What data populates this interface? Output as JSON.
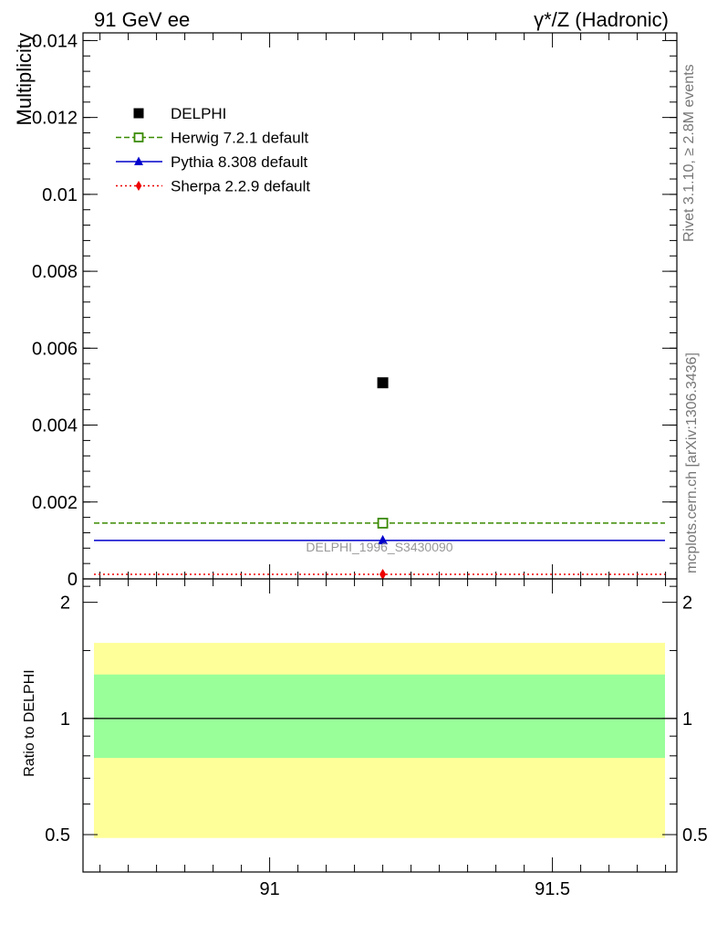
{
  "header": {
    "left": "91 GeV ee",
    "right": "γ*/Z (Hadronic)"
  },
  "side_text": {
    "top": "Rivet 3.1.10, ≥ 2.8M events",
    "bottom": "mcplots.cern.ch [arXiv:1306.3436]"
  },
  "watermark": "DELPHI_1996_S3430090",
  "chart_data": [
    {
      "type": "scatter",
      "ylabel": "Multiplicity",
      "xlim": [
        90.67,
        91.72
      ],
      "ylim": [
        0,
        0.0142
      ],
      "yticks": [
        0,
        0.002,
        0.004,
        0.006,
        0.008,
        0.01,
        0.012,
        0.014
      ],
      "ytick_labels": [
        "0",
        "0.002",
        "0.004",
        "0.006",
        "0.008",
        "0.01",
        "0.012",
        "0.014"
      ],
      "legend_position": "top-left",
      "series": [
        {
          "name": "DELPHI",
          "color": "#000000",
          "marker": "square-filled",
          "line": "none",
          "x": [
            91.2
          ],
          "y": [
            0.0051
          ]
        },
        {
          "name": "Herwig 7.2.1 default",
          "color": "#3a8a00",
          "marker": "square-open",
          "line": "dashed",
          "x": [
            91.2
          ],
          "y": [
            0.00145
          ]
        },
        {
          "name": "Pythia 8.308 default",
          "color": "#0000cc",
          "marker": "triangle",
          "line": "solid",
          "x": [
            91.2
          ],
          "y": [
            0.001
          ]
        },
        {
          "name": "Sherpa 2.2.9 default",
          "color": "#ee0000",
          "marker": "diamond",
          "line": "dotted",
          "x": [
            91.2
          ],
          "y": [
            0.00012
          ]
        }
      ]
    },
    {
      "type": "line",
      "ylabel": "Ratio to DELPHI",
      "xlim": [
        90.67,
        91.72
      ],
      "ylim": [
        0.4,
        2.3
      ],
      "log_scale_y": true,
      "yticks": [
        0.5,
        1,
        2
      ],
      "ytick_labels": [
        "0.5",
        "1",
        "2"
      ],
      "xticks": [
        91,
        91.5
      ],
      "xtick_labels": [
        "91",
        "91.5"
      ],
      "reference_line": 1,
      "bands": [
        {
          "color": "#ffff99",
          "low": 0.49,
          "high": 1.57
        },
        {
          "color": "#99ff99",
          "low": 0.79,
          "high": 1.3
        }
      ]
    }
  ]
}
